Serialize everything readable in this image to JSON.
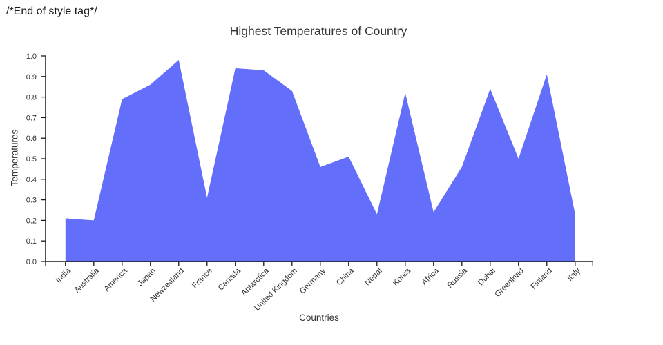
{
  "page": {
    "stray_text": "/*End of style tag*/"
  },
  "chart_data": {
    "type": "area",
    "title": "Highest Temperatures of Country",
    "xlabel": "Countries",
    "ylabel": "Temperatures",
    "categories": [
      "India",
      "Australia",
      "America",
      "Japan",
      "Newzealand",
      "France",
      "Canada",
      "Antarctica",
      "United Kingdom",
      "Germany",
      "China",
      "Nepal",
      "Korea",
      "Africa",
      "Russia",
      "Dubai",
      "Greenlnad",
      "Finland",
      "Italy"
    ],
    "values": [
      0.21,
      0.2,
      0.79,
      0.86,
      0.98,
      0.31,
      0.94,
      0.93,
      0.83,
      0.46,
      0.51,
      0.23,
      0.82,
      0.24,
      0.46,
      0.84,
      0.5,
      0.91,
      0.23
    ],
    "ylim": [
      0.0,
      1.0
    ],
    "ytick_step": 0.1,
    "ytick_labels": [
      "0.0",
      "0.1",
      "0.2",
      "0.3",
      "0.4",
      "0.5",
      "0.6",
      "0.7",
      "0.8",
      "0.9",
      "1.0"
    ],
    "grid": false,
    "legend": "none",
    "fill_color": "#636efa",
    "axis_color": "#1a1a1a",
    "tick_label_color": "#333333",
    "title_color": "#333333"
  }
}
